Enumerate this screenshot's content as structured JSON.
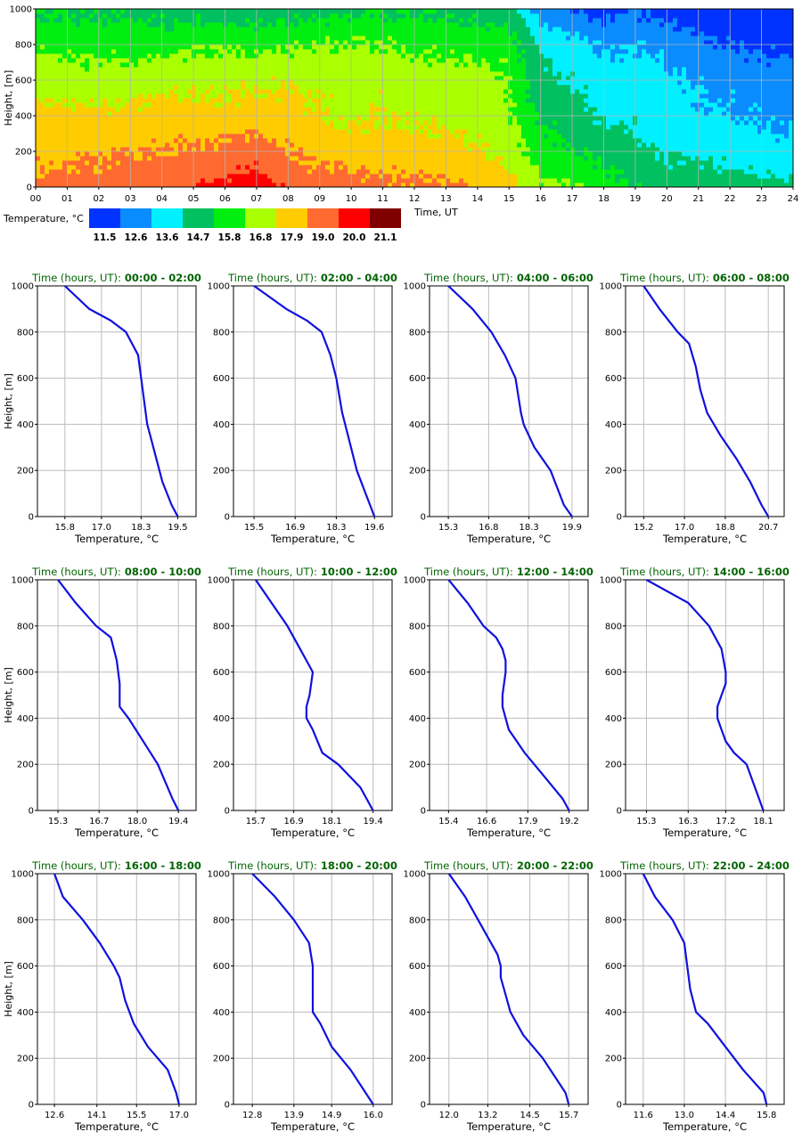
{
  "heatmap": {
    "ylabel": "Height, [m]",
    "xlabel": "Time, UT",
    "y_ticks": [
      "0",
      "200",
      "400",
      "600",
      "800",
      "1000"
    ],
    "x_ticks": [
      "00",
      "01",
      "02",
      "03",
      "04",
      "05",
      "06",
      "07",
      "08",
      "09",
      "10",
      "11",
      "12",
      "13",
      "14",
      "15",
      "16",
      "17",
      "18",
      "19",
      "20",
      "21",
      "22",
      "23",
      "24"
    ],
    "colorbar": {
      "label": "Temperature, °C",
      "ticks": [
        "11.5",
        "12.6",
        "13.6",
        "14.7",
        "15.8",
        "16.8",
        "17.9",
        "19.0",
        "20.0",
        "21.1"
      ],
      "colors": [
        "#0033ff",
        "#0a8cff",
        "#00f0ff",
        "#00c060",
        "#00ee10",
        "#aaff00",
        "#ffcc00",
        "#ff6a30",
        "#ff0000",
        "#800000"
      ]
    }
  },
  "profiles": {
    "title_prefix": "Time (hours, UT):",
    "xlabel": "Temperature, °C",
    "ylabel": "Height, [m]",
    "y_ticks": [
      "0",
      "200",
      "400",
      "600",
      "800",
      "1000"
    ]
  },
  "chart_data": [
    {
      "type": "heatmap",
      "ylabel": "Height, [m]",
      "xlabel": "Time, UT",
      "x_range": [
        0,
        24
      ],
      "y_range": [
        0,
        1000
      ],
      "grid": true,
      "colorbar_label": "Temperature, °C",
      "colorbar_ticks": [
        11.5,
        12.6,
        13.6,
        14.7,
        15.8,
        16.8,
        17.9,
        19.0,
        20.0,
        21.1
      ],
      "hours": [
        0,
        1,
        2,
        3,
        4,
        5,
        6,
        7,
        8,
        9,
        10,
        11,
        12,
        13,
        14,
        15,
        16,
        17,
        18,
        19,
        20,
        21,
        22,
        23,
        24
      ],
      "heights": [
        0,
        200,
        400,
        600,
        800,
        1000
      ],
      "values": [
        [
          19.4,
          18.6,
          18.2,
          17.4,
          16.6,
          15.8
        ],
        [
          19.4,
          18.7,
          18.2,
          17.3,
          16.5,
          15.6
        ],
        [
          19.5,
          18.8,
          18.1,
          17.3,
          16.4,
          15.5
        ],
        [
          19.6,
          18.9,
          18.2,
          17.3,
          16.4,
          15.5
        ],
        [
          19.7,
          19.0,
          18.4,
          17.5,
          16.5,
          15.4
        ],
        [
          19.9,
          19.1,
          18.3,
          17.6,
          16.7,
          15.3
        ],
        [
          20.4,
          19.3,
          18.3,
          17.6,
          16.7,
          15.2
        ],
        [
          20.6,
          19.5,
          18.4,
          17.7,
          16.6,
          15.2
        ],
        [
          19.8,
          19.0,
          18.4,
          17.8,
          16.7,
          15.3
        ],
        [
          19.4,
          18.7,
          17.9,
          17.6,
          16.8,
          15.4
        ],
        [
          19.4,
          18.5,
          17.7,
          17.5,
          16.8,
          15.6
        ],
        [
          19.3,
          18.5,
          17.8,
          17.6,
          16.8,
          15.7
        ],
        [
          19.2,
          18.4,
          17.8,
          17.4,
          16.6,
          15.6
        ],
        [
          19.1,
          18.3,
          17.6,
          17.3,
          16.5,
          15.5
        ],
        [
          18.9,
          18.1,
          17.4,
          17.3,
          16.4,
          15.4
        ],
        [
          18.2,
          17.4,
          17.0,
          16.9,
          16.3,
          15.3
        ],
        [
          17.0,
          16.3,
          15.6,
          15.1,
          14.5,
          12.9
        ],
        [
          16.8,
          15.9,
          15.3,
          14.6,
          14.0,
          12.6
        ],
        [
          16.3,
          15.5,
          14.5,
          14.2,
          13.4,
          12.1
        ],
        [
          15.8,
          15.0,
          14.4,
          14.3,
          13.6,
          12.5
        ],
        [
          15.5,
          14.5,
          14.1,
          13.9,
          13.2,
          12.2
        ],
        [
          15.3,
          14.4,
          13.8,
          13.5,
          12.8,
          11.9
        ],
        [
          15.3,
          14.2,
          13.6,
          13.3,
          12.6,
          11.8
        ],
        [
          15.1,
          14.0,
          13.4,
          13.2,
          12.4,
          11.6
        ],
        [
          15.0,
          13.9,
          13.3,
          13.1,
          12.3,
          11.5
        ]
      ]
    },
    {
      "type": "line",
      "title": "Time (hours, UT): 00:00 - 02:00",
      "xlabel": "Temperature, °C",
      "ylabel": "Height, [m]",
      "xlim": [
        14.9,
        20.1
      ],
      "ylim": [
        0,
        1000
      ],
      "x_ticks": [
        15.8,
        17.0,
        18.3,
        19.5
      ],
      "x": [
        19.5,
        19.3,
        19.0,
        18.8,
        18.6,
        18.5,
        18.4,
        18.3,
        18.2,
        17.8,
        17.3,
        16.6,
        15.8
      ],
      "y": [
        0,
        50,
        150,
        250,
        350,
        400,
        500,
        600,
        700,
        800,
        850,
        900,
        1000
      ]
    },
    {
      "type": "line",
      "title": "Time (hours, UT): 02:00 - 04:00",
      "xlabel": "Temperature, °C",
      "ylabel": "Height, [m]",
      "xlim": [
        14.8,
        20.2
      ],
      "ylim": [
        0,
        1000
      ],
      "x_ticks": [
        15.5,
        16.9,
        18.3,
        19.6
      ],
      "x": [
        19.6,
        19.3,
        19.0,
        18.8,
        18.6,
        18.5,
        18.3,
        18.1,
        17.8,
        17.3,
        16.6,
        15.5
      ],
      "y": [
        0,
        100,
        200,
        300,
        400,
        450,
        600,
        700,
        800,
        850,
        900,
        1000
      ]
    },
    {
      "type": "line",
      "title": "Time (hours, UT): 04:00 - 06:00",
      "xlabel": "Temperature, °C",
      "ylabel": "Height, [m]",
      "xlim": [
        14.6,
        20.5
      ],
      "ylim": [
        0,
        1000
      ],
      "x_ticks": [
        15.3,
        16.8,
        18.3,
        19.9
      ],
      "x": [
        19.9,
        19.6,
        19.1,
        18.5,
        18.1,
        18.0,
        17.8,
        17.4,
        16.9,
        16.2,
        15.3
      ],
      "y": [
        0,
        50,
        200,
        300,
        400,
        450,
        600,
        700,
        800,
        900,
        1000
      ]
    },
    {
      "type": "line",
      "title": "Time (hours, UT): 06:00 - 08:00",
      "xlabel": "Temperature, °C",
      "ylabel": "Height, [m]",
      "xlim": [
        14.4,
        21.4
      ],
      "ylim": [
        0,
        1000
      ],
      "x_ticks": [
        15.2,
        17.0,
        18.8,
        20.7
      ],
      "x": [
        20.7,
        20.4,
        19.9,
        19.3,
        18.6,
        18.0,
        17.7,
        17.5,
        17.2,
        16.7,
        15.9,
        15.2
      ],
      "y": [
        0,
        50,
        150,
        250,
        350,
        450,
        550,
        650,
        750,
        800,
        900,
        1000
      ]
    },
    {
      "type": "line",
      "title": "Time (hours, UT): 08:00 - 10:00",
      "xlabel": "Temperature, °C",
      "ylabel": "Height, [m]",
      "xlim": [
        14.6,
        20.0
      ],
      "ylim": [
        0,
        1000
      ],
      "x_ticks": [
        15.3,
        16.7,
        18.0,
        19.4
      ],
      "x": [
        19.4,
        19.2,
        18.7,
        18.2,
        17.7,
        17.4,
        17.4,
        17.3,
        17.1,
        16.6,
        15.9,
        15.3
      ],
      "y": [
        0,
        50,
        200,
        300,
        400,
        450,
        550,
        650,
        750,
        800,
        900,
        1000
      ]
    },
    {
      "type": "line",
      "title": "Time (hours, UT): 10:00 - 12:00",
      "xlabel": "Temperature, °C",
      "ylabel": "Height, [m]",
      "xlim": [
        15.0,
        20.0
      ],
      "ylim": [
        0,
        1000
      ],
      "x_ticks": [
        15.7,
        16.9,
        18.1,
        19.4
      ],
      "x": [
        19.4,
        19.0,
        18.3,
        17.8,
        17.5,
        17.3,
        17.3,
        17.4,
        17.5,
        17.3,
        17.1,
        16.7,
        15.7
      ],
      "y": [
        0,
        100,
        200,
        250,
        350,
        400,
        450,
        500,
        600,
        650,
        700,
        800,
        1000
      ]
    },
    {
      "type": "line",
      "title": "Time (hours, UT): 12:00 - 14:00",
      "xlabel": "Temperature, °C",
      "ylabel": "Height, [m]",
      "xlim": [
        14.8,
        19.8
      ],
      "ylim": [
        0,
        1000
      ],
      "x_ticks": [
        15.4,
        16.6,
        17.9,
        19.2
      ],
      "x": [
        19.2,
        19.0,
        18.4,
        17.8,
        17.3,
        17.1,
        17.1,
        17.2,
        17.2,
        17.1,
        16.9,
        16.5,
        16.0,
        15.4
      ],
      "y": [
        0,
        50,
        150,
        250,
        350,
        450,
        500,
        600,
        650,
        700,
        750,
        800,
        900,
        1000
      ]
    },
    {
      "type": "line",
      "title": "Time (hours, UT): 14:00 - 16:00",
      "xlabel": "Temperature, °C",
      "ylabel": "Height, [m]",
      "xlim": [
        14.8,
        18.6
      ],
      "ylim": [
        0,
        1000
      ],
      "x_ticks": [
        15.3,
        16.3,
        17.2,
        18.1
      ],
      "x": [
        18.1,
        17.9,
        17.7,
        17.4,
        17.2,
        17.1,
        17.0,
        17.0,
        17.1,
        17.2,
        17.2,
        17.1,
        16.8,
        16.3,
        15.3
      ],
      "y": [
        0,
        100,
        200,
        250,
        300,
        350,
        400,
        450,
        500,
        550,
        600,
        700,
        800,
        900,
        1000
      ]
    },
    {
      "type": "line",
      "title": "Time (hours, UT): 16:00 - 18:00",
      "xlabel": "Temperature, °C",
      "ylabel": "Height, [m]",
      "xlim": [
        12.0,
        17.6
      ],
      "ylim": [
        0,
        1000
      ],
      "x_ticks": [
        12.6,
        14.1,
        15.5,
        17.0
      ],
      "x": [
        17.0,
        16.9,
        16.6,
        15.9,
        15.4,
        15.1,
        14.9,
        14.7,
        14.2,
        13.6,
        12.9,
        12.6
      ],
      "y": [
        0,
        50,
        150,
        250,
        350,
        450,
        550,
        600,
        700,
        800,
        900,
        1000
      ]
    },
    {
      "type": "line",
      "title": "Time (hours, UT): 18:00 - 20:00",
      "xlabel": "Temperature, °C",
      "ylabel": "Height, [m]",
      "xlim": [
        12.3,
        16.5
      ],
      "ylim": [
        0,
        1000
      ],
      "x_ticks": [
        12.8,
        13.9,
        14.9,
        16.0
      ],
      "x": [
        16.0,
        15.8,
        15.4,
        14.9,
        14.6,
        14.4,
        14.4,
        14.4,
        14.4,
        14.3,
        13.9,
        13.4,
        12.8
      ],
      "y": [
        0,
        50,
        150,
        250,
        350,
        400,
        450,
        550,
        600,
        700,
        800,
        900,
        1000
      ]
    },
    {
      "type": "line",
      "title": "Time (hours, UT): 20:00 - 22:00",
      "xlabel": "Temperature, °C",
      "ylabel": "Height, [m]",
      "xlim": [
        11.4,
        16.3
      ],
      "ylim": [
        0,
        1000
      ],
      "x_ticks": [
        12.0,
        13.2,
        14.5,
        15.7
      ],
      "x": [
        15.7,
        15.6,
        14.9,
        14.3,
        13.9,
        13.7,
        13.6,
        13.6,
        13.5,
        13.3,
        12.9,
        12.5,
        12.0
      ],
      "y": [
        0,
        50,
        200,
        300,
        400,
        500,
        550,
        600,
        650,
        700,
        800,
        900,
        1000
      ]
    },
    {
      "type": "line",
      "title": "Time (hours, UT): 22:00 - 24:00",
      "xlabel": "Temperature, °C",
      "ylabel": "Height, [m]",
      "xlim": [
        11.0,
        16.4
      ],
      "ylim": [
        0,
        1000
      ],
      "x_ticks": [
        11.6,
        13.0,
        14.4,
        15.8
      ],
      "x": [
        15.8,
        15.7,
        15.0,
        14.4,
        13.8,
        13.4,
        13.2,
        13.1,
        13.0,
        12.6,
        12.0,
        11.6
      ],
      "y": [
        0,
        50,
        150,
        250,
        350,
        400,
        500,
        600,
        700,
        800,
        900,
        1000
      ]
    }
  ]
}
